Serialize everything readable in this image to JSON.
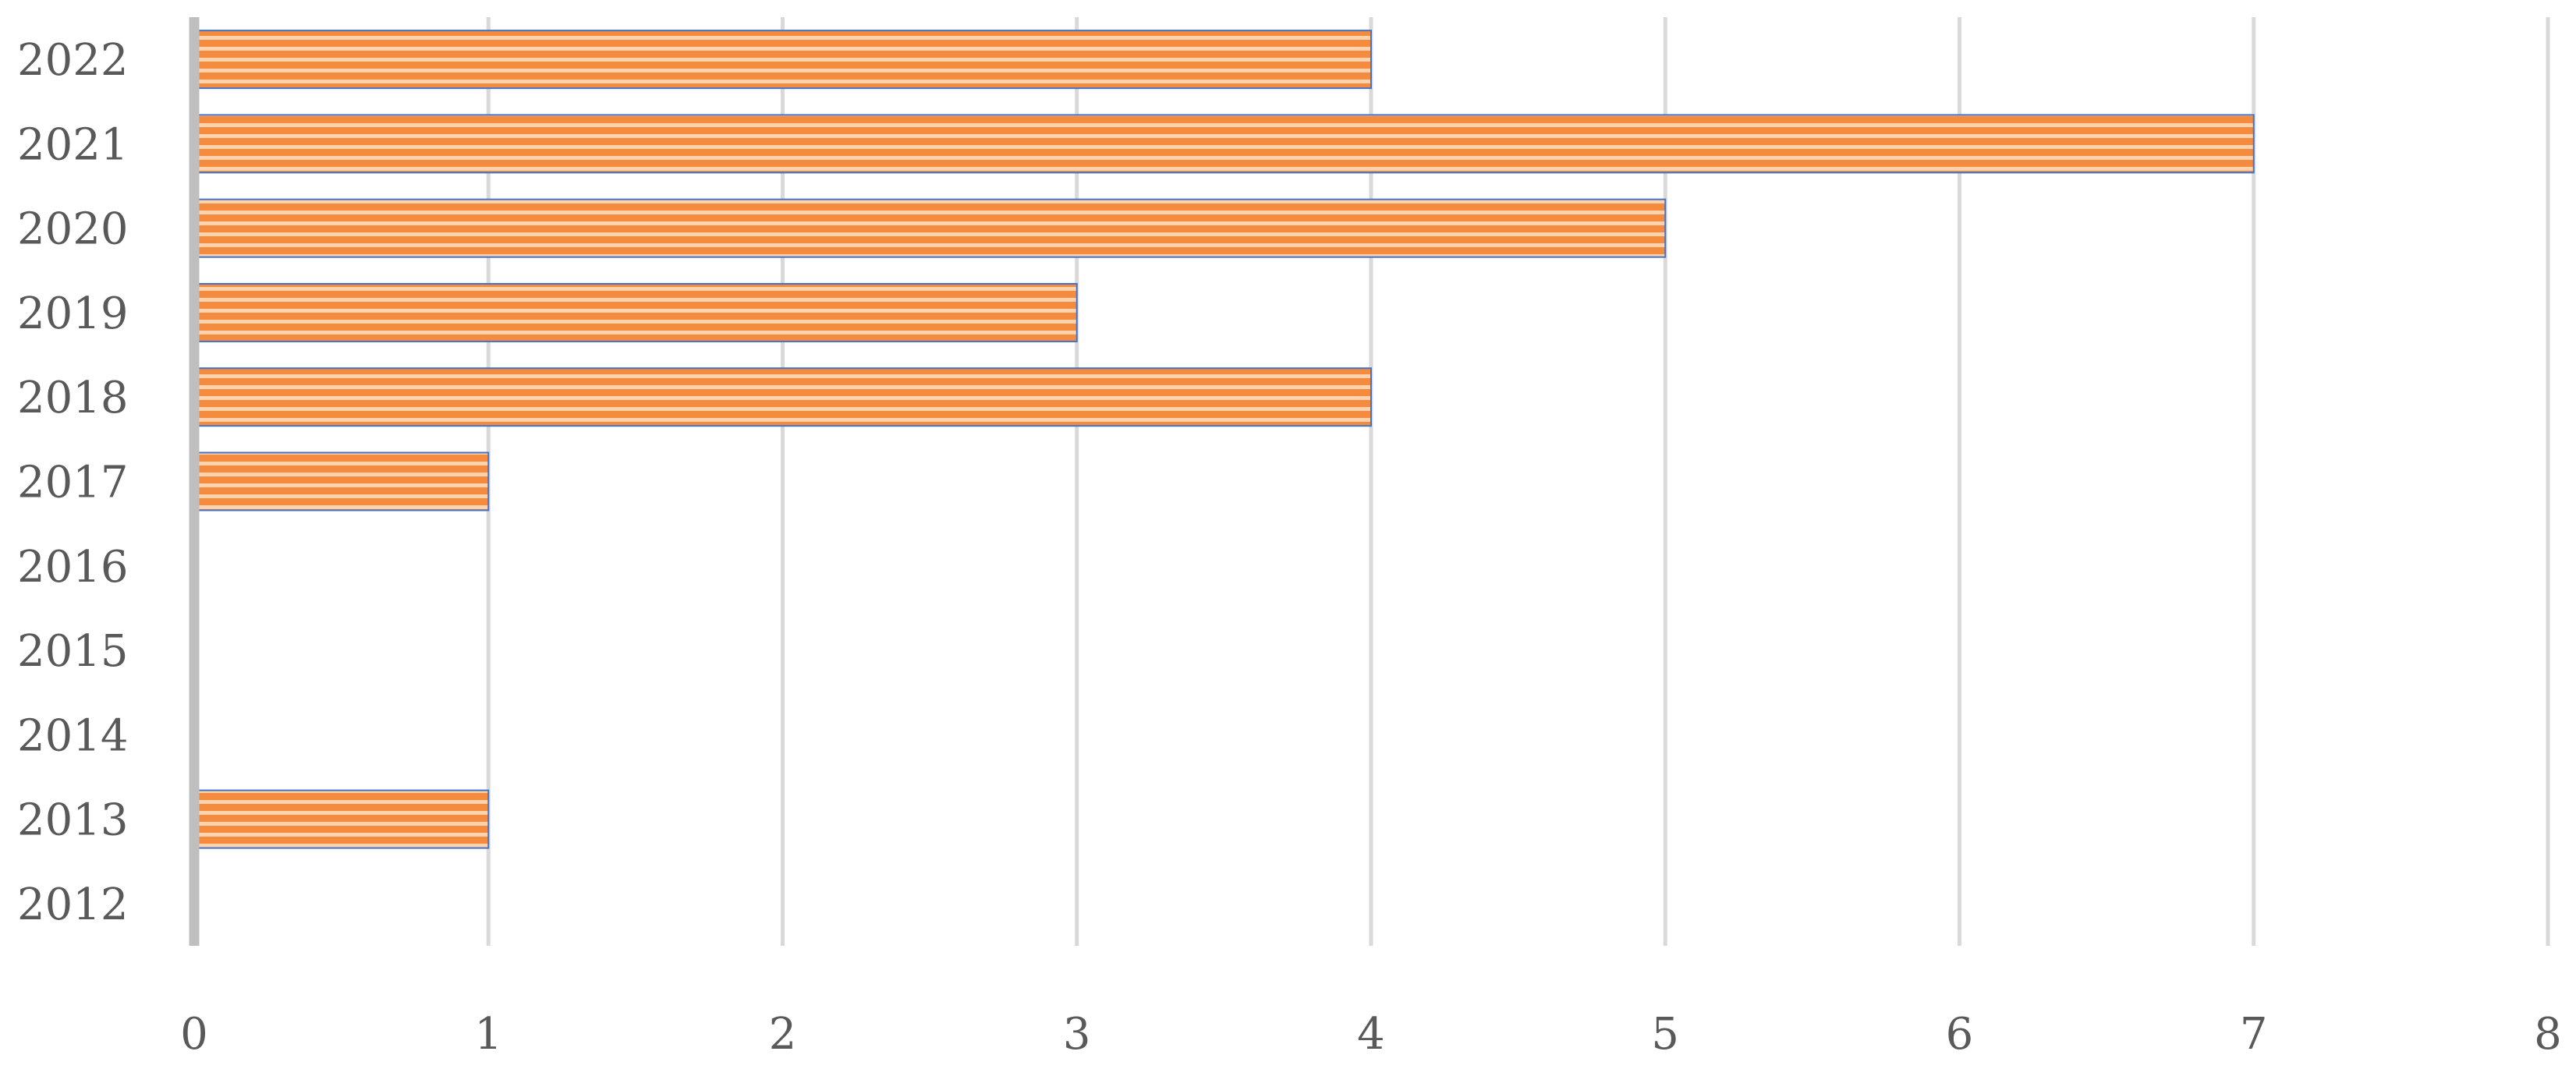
{
  "chart_data": {
    "type": "bar",
    "orientation": "horizontal",
    "categories": [
      "2012",
      "2013",
      "2014",
      "2015",
      "2016",
      "2017",
      "2018",
      "2019",
      "2020",
      "2021",
      "2022"
    ],
    "values": [
      0,
      1,
      0,
      0,
      0,
      1,
      4,
      3,
      5,
      7,
      4
    ],
    "xlim": [
      0,
      8
    ],
    "x_ticks": [
      "0",
      "1",
      "2",
      "3",
      "4",
      "5",
      "6",
      "7",
      "8"
    ],
    "grid": "vertical",
    "title": "",
    "xlabel": "",
    "ylabel": "",
    "bar_fill_color": "#F58B3F",
    "bar_stripe_color": "#FFD2AE",
    "bar_border_color": "#4472C4",
    "grid_color": "#D9D9D9",
    "axis_color": "#BFBFBF",
    "label_color": "#595959"
  }
}
